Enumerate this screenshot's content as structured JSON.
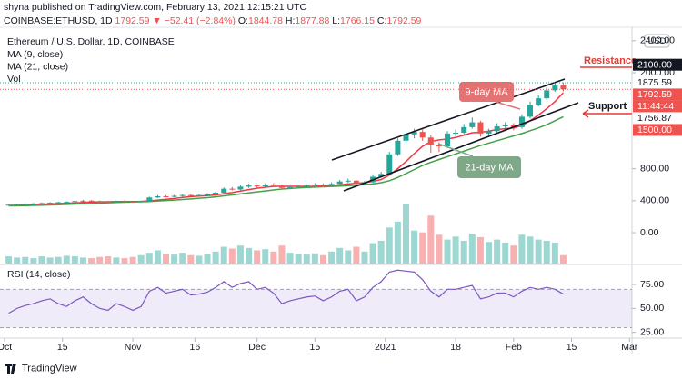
{
  "header": {
    "line1": "shyna published on TradingView.com, February 13, 2021 12:15:21 UTC",
    "symbol": "COINBASE:ETHUSD, 1D",
    "price": "1792.59",
    "change": "▼ −52.41 (−2.84%)",
    "ohlc": [
      {
        "label": "O:",
        "value": "1844.78"
      },
      {
        "label": "H:",
        "value": "1877.88"
      },
      {
        "label": "L:",
        "value": "1766.15"
      },
      {
        "label": "C:",
        "value": "1792.59"
      }
    ]
  },
  "footer": {
    "brand": "TradingView"
  },
  "chart_data": [
    {
      "type": "candlestick",
      "title": "Ethereum / U.S. Dollar, 1D, COINBASE",
      "currency": "USD",
      "up_color": "#26a69a",
      "down_color": "#ef5350",
      "x": [
        1,
        3,
        5,
        7,
        9,
        11,
        13,
        15,
        17,
        19,
        21,
        23,
        25,
        27,
        29,
        31,
        33,
        35,
        37,
        39,
        41,
        43,
        45,
        47,
        49,
        51,
        53,
        55,
        57,
        59,
        61,
        63,
        65,
        67,
        69,
        71,
        73,
        75,
        77,
        79,
        81,
        83,
        85,
        87,
        89,
        91,
        93,
        95,
        97,
        99,
        101,
        103,
        105,
        107,
        109,
        111,
        113,
        115,
        117,
        119,
        121,
        123,
        125,
        127,
        129,
        131,
        133,
        135
      ],
      "open": [
        345,
        350,
        355,
        360,
        365,
        370,
        375,
        380,
        385,
        395,
        400,
        395,
        390,
        385,
        395,
        390,
        385,
        395,
        440,
        455,
        450,
        460,
        470,
        465,
        470,
        480,
        500,
        550,
        540,
        575,
        590,
        580,
        600,
        590,
        560,
        570,
        580,
        590,
        600,
        590,
        610,
        640,
        650,
        610,
        630,
        700,
        735,
        980,
        1150,
        1230,
        1260,
        1190,
        1100,
        1080,
        1240,
        1250,
        1320,
        1380,
        1240,
        1270,
        1330,
        1350,
        1320,
        1450,
        1600,
        1680,
        1780,
        1844.78
      ],
      "high": [
        356,
        362,
        366,
        372,
        378,
        382,
        390,
        392,
        405,
        410,
        408,
        402,
        398,
        402,
        404,
        396,
        402,
        450,
        470,
        468,
        472,
        482,
        480,
        485,
        492,
        512,
        565,
        570,
        595,
        612,
        605,
        618,
        620,
        600,
        585,
        595,
        605,
        618,
        615,
        630,
        660,
        675,
        660,
        650,
        730,
        760,
        1010,
        1180,
        1260,
        1300,
        1290,
        1220,
        1130,
        1270,
        1290,
        1360,
        1440,
        1400,
        1300,
        1370,
        1380,
        1370,
        1480,
        1640,
        1720,
        1820,
        1870,
        1877.88
      ],
      "low": [
        340,
        346,
        350,
        355,
        360,
        364,
        370,
        374,
        380,
        388,
        388,
        382,
        376,
        378,
        382,
        376,
        378,
        390,
        432,
        440,
        442,
        450,
        455,
        456,
        462,
        472,
        492,
        528,
        530,
        560,
        565,
        570,
        575,
        540,
        545,
        560,
        570,
        580,
        575,
        580,
        600,
        625,
        590,
        600,
        620,
        690,
        725,
        960,
        1120,
        1180,
        1150,
        1000,
        1010,
        1060,
        1210,
        1230,
        1300,
        1200,
        1220,
        1250,
        1300,
        1280,
        1300,
        1430,
        1580,
        1660,
        1760,
        1766.15
      ],
      "close": [
        350,
        355,
        360,
        365,
        370,
        375,
        380,
        385,
        395,
        400,
        395,
        390,
        385,
        395,
        390,
        385,
        395,
        440,
        455,
        450,
        460,
        470,
        465,
        470,
        480,
        500,
        550,
        540,
        575,
        590,
        580,
        600,
        590,
        560,
        570,
        580,
        590,
        600,
        590,
        610,
        640,
        650,
        610,
        630,
        700,
        735,
        980,
        1150,
        1230,
        1260,
        1190,
        1100,
        1080,
        1240,
        1250,
        1320,
        1380,
        1240,
        1270,
        1330,
        1350,
        1320,
        1450,
        1600,
        1680,
        1780,
        1840,
        1792.59
      ],
      "series": [
        {
          "name": "MA (9, close)",
          "color": "#f23645",
          "values": [
            340,
            344,
            348,
            352,
            356,
            360,
            364,
            368,
            373,
            378,
            382,
            385,
            387,
            389,
            390,
            390,
            391,
            398,
            408,
            418,
            428,
            440,
            450,
            457,
            463,
            472,
            488,
            502,
            520,
            538,
            555,
            568,
            578,
            580,
            580,
            580,
            578,
            580,
            585,
            590,
            598,
            610,
            618,
            625,
            640,
            665,
            720,
            800,
            890,
            990,
            1080,
            1140,
            1160,
            1170,
            1190,
            1220,
            1250,
            1255,
            1270,
            1290,
            1300,
            1310,
            1340,
            1400,
            1470,
            1550,
            1640,
            1750
          ]
        },
        {
          "name": "MA (21, close)",
          "color": "#43a047",
          "values": [
            335,
            337,
            339,
            341,
            344,
            347,
            350,
            354,
            358,
            362,
            366,
            370,
            374,
            378,
            381,
            384,
            386,
            390,
            396,
            402,
            408,
            415,
            422,
            430,
            438,
            448,
            460,
            472,
            485,
            498,
            510,
            522,
            534,
            545,
            553,
            560,
            566,
            570,
            574,
            578,
            582,
            588,
            594,
            600,
            610,
            625,
            650,
            690,
            740,
            790,
            840,
            880,
            915,
            950,
            985,
            1020,
            1055,
            1090,
            1120,
            1150,
            1180,
            1210,
            1240,
            1275,
            1310,
            1350,
            1400,
            1450
          ]
        }
      ],
      "volume": {
        "name": "Vol",
        "vlim": [
          0,
          100
        ],
        "values": [
          12,
          10,
          11,
          9,
          12,
          10,
          11,
          13,
          12,
          10,
          9,
          11,
          12,
          10,
          9,
          11,
          14,
          18,
          22,
          16,
          15,
          18,
          14,
          13,
          16,
          20,
          28,
          25,
          30,
          26,
          22,
          24,
          20,
          30,
          18,
          16,
          15,
          17,
          14,
          20,
          26,
          22,
          28,
          20,
          34,
          38,
          60,
          70,
          100,
          55,
          52,
          80,
          48,
          40,
          45,
          38,
          50,
          44,
          36,
          40,
          35,
          30,
          48,
          45,
          40,
          38,
          35,
          14
        ]
      },
      "xlim": [
        -1.1,
        151.6
      ],
      "ylim": [
        -386,
        2568
      ],
      "xticks": [
        {
          "value": 0,
          "label": "Oct"
        },
        {
          "value": 14,
          "label": "15"
        },
        {
          "value": 31,
          "label": "Nov"
        },
        {
          "value": 46,
          "label": "16"
        },
        {
          "value": 61,
          "label": "Dec"
        },
        {
          "value": 75,
          "label": "15"
        },
        {
          "value": 92,
          "label": "2021"
        },
        {
          "value": 109,
          "label": "18"
        },
        {
          "value": 123,
          "label": "Feb"
        },
        {
          "value": 137,
          "label": "15"
        },
        {
          "value": 151,
          "label": "Mar"
        }
      ],
      "yticks": [
        {
          "value": 2400,
          "label": "2400.00"
        },
        {
          "value": 2000,
          "label": "2000.00"
        },
        {
          "value": 800,
          "label": "800.00"
        },
        {
          "value": 400,
          "label": "400.00"
        },
        {
          "value": 0,
          "label": "0.00"
        }
      ],
      "price_labels": [
        {
          "value": 2100,
          "label": "2100.00",
          "color": "#131722",
          "text_color": "#ffffff"
        },
        {
          "value": 1875.59,
          "label": "1875.59",
          "color": "#ffffff",
          "text_color": "#131722",
          "dotted": true
        },
        {
          "value": 1792.59,
          "label": "1792.59",
          "color": "#ef5350",
          "text_color": "#ffffff",
          "dotted": true,
          "countdown": "11:44:44"
        },
        {
          "value": 1756.87,
          "label": "1756.87",
          "color": "#ffffff",
          "text_color": "#131722"
        },
        {
          "value": 1500,
          "label": "1500.00",
          "color": "#ef5350",
          "text_color": "#ffffff"
        }
      ],
      "annotations": [
        "9-day MA",
        "21-day MA",
        "Resistance",
        "Support"
      ],
      "grid": false
    },
    {
      "type": "line",
      "title": "RSI (14, close)",
      "color": "#7e57c2",
      "values": [
        45,
        50,
        53,
        55,
        58,
        60,
        55,
        52,
        58,
        62,
        55,
        50,
        48,
        55,
        52,
        48,
        52,
        68,
        72,
        66,
        68,
        70,
        64,
        65,
        67,
        72,
        78,
        72,
        76,
        78,
        70,
        72,
        66,
        55,
        58,
        60,
        62,
        63,
        58,
        62,
        68,
        70,
        58,
        62,
        72,
        78,
        88,
        90,
        89,
        88,
        80,
        68,
        62,
        70,
        70,
        72,
        74,
        60,
        62,
        66,
        66,
        62,
        68,
        72,
        70,
        72,
        70,
        65
      ],
      "band": [
        30,
        70
      ],
      "ylim": [
        19,
        95
      ],
      "yticks": [
        {
          "value": 75,
          "label": "75.00"
        },
        {
          "value": 50,
          "label": "50.00"
        },
        {
          "value": 25,
          "label": "25.00"
        }
      ]
    }
  ]
}
